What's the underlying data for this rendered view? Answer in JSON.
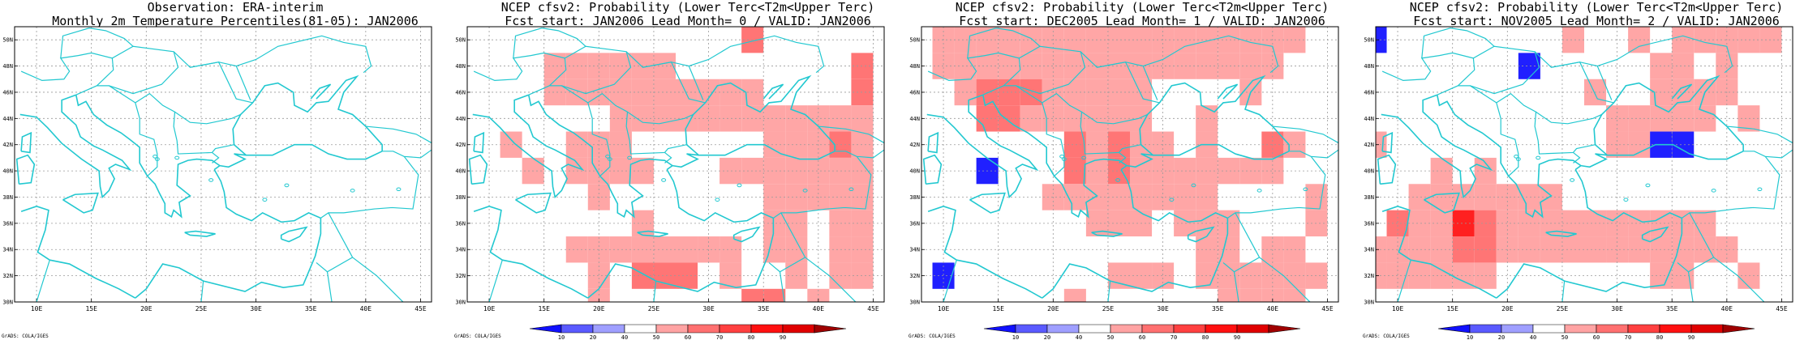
{
  "panels": [
    {
      "title1": "Observation: ERA-interim",
      "title2": "Monthly 2m Temperature Percentiles(81-05): JAN2006",
      "credit": "GrADS: COLA/IGES",
      "has_colorbar": false,
      "cells": []
    },
    {
      "title1": "NCEP cfsv2: Probability (Lower Terc<T2m<Upper Terc)",
      "title2": "Fcst start: JAN2006   Lead Month= 0 / VALID: JAN2006",
      "credit": "GrADS: COLA/IGES",
      "has_colorbar": true,
      "cells": [
        [
          34,
          50,
          50
        ],
        [
          16,
          48,
          40
        ],
        [
          18,
          48,
          40
        ],
        [
          20,
          48,
          40
        ],
        [
          22,
          48,
          40
        ],
        [
          24,
          48,
          40
        ],
        [
          26,
          48,
          40
        ],
        [
          44,
          48,
          50
        ],
        [
          16,
          46,
          40
        ],
        [
          18,
          46,
          40
        ],
        [
          20,
          46,
          40
        ],
        [
          22,
          46,
          40
        ],
        [
          24,
          46,
          40
        ],
        [
          26,
          46,
          40
        ],
        [
          28,
          46,
          40
        ],
        [
          30,
          46,
          40
        ],
        [
          32,
          46,
          40
        ],
        [
          34,
          46,
          40
        ],
        [
          44,
          46,
          50
        ],
        [
          22,
          44,
          40
        ],
        [
          24,
          44,
          40
        ],
        [
          26,
          44,
          40
        ],
        [
          28,
          44,
          40
        ],
        [
          30,
          44,
          40
        ],
        [
          32,
          44,
          40
        ],
        [
          34,
          44,
          40
        ],
        [
          36,
          44,
          40
        ],
        [
          38,
          44,
          40
        ],
        [
          40,
          44,
          40
        ],
        [
          42,
          44,
          40
        ],
        [
          44,
          44,
          40
        ],
        [
          12,
          42,
          40
        ],
        [
          18,
          42,
          40
        ],
        [
          20,
          42,
          40
        ],
        [
          22,
          42,
          40
        ],
        [
          36,
          42,
          40
        ],
        [
          38,
          42,
          40
        ],
        [
          40,
          42,
          40
        ],
        [
          42,
          42,
          50
        ],
        [
          44,
          42,
          40
        ],
        [
          14,
          40,
          40
        ],
        [
          18,
          40,
          40
        ],
        [
          20,
          40,
          40
        ],
        [
          22,
          40,
          40
        ],
        [
          24,
          40,
          40
        ],
        [
          32,
          40,
          40
        ],
        [
          34,
          40,
          40
        ],
        [
          36,
          40,
          40
        ],
        [
          38,
          40,
          40
        ],
        [
          40,
          40,
          40
        ],
        [
          42,
          40,
          40
        ],
        [
          44,
          40,
          40
        ],
        [
          20,
          38,
          40
        ],
        [
          36,
          38,
          40
        ],
        [
          38,
          38,
          40
        ],
        [
          40,
          38,
          40
        ],
        [
          42,
          38,
          40
        ],
        [
          44,
          38,
          40
        ],
        [
          24,
          36,
          40
        ],
        [
          36,
          36,
          40
        ],
        [
          38,
          36,
          40
        ],
        [
          42,
          36,
          40
        ],
        [
          44,
          36,
          40
        ],
        [
          18,
          34,
          40
        ],
        [
          20,
          34,
          40
        ],
        [
          22,
          34,
          40
        ],
        [
          24,
          34,
          40
        ],
        [
          26,
          34,
          40
        ],
        [
          28,
          34,
          40
        ],
        [
          30,
          34,
          40
        ],
        [
          32,
          34,
          40
        ],
        [
          36,
          34,
          40
        ],
        [
          38,
          34,
          40
        ],
        [
          42,
          34,
          40
        ],
        [
          44,
          34,
          40
        ],
        [
          20,
          32,
          40
        ],
        [
          24,
          32,
          50
        ],
        [
          26,
          32,
          50
        ],
        [
          28,
          32,
          50
        ],
        [
          32,
          32,
          40
        ],
        [
          38,
          32,
          40
        ],
        [
          42,
          32,
          40
        ],
        [
          44,
          32,
          40
        ],
        [
          20,
          30,
          40
        ],
        [
          34,
          30,
          50
        ],
        [
          36,
          30,
          50
        ],
        [
          40,
          30,
          40
        ]
      ]
    },
    {
      "title1": "NCEP cfsv2: Probability (Lower Terc<T2m<Upper Terc)",
      "title2": "Fcst start: DEC2005   Lead Month= 1 / VALID: JAN2006",
      "credit": "GrADS: COLA/IGES",
      "has_colorbar": true,
      "cells": [
        [
          10,
          50,
          40
        ],
        [
          12,
          50,
          40
        ],
        [
          14,
          50,
          40
        ],
        [
          16,
          50,
          40
        ],
        [
          18,
          50,
          40
        ],
        [
          20,
          50,
          40
        ],
        [
          22,
          50,
          40
        ],
        [
          24,
          50,
          40
        ],
        [
          26,
          50,
          40
        ],
        [
          28,
          50,
          40
        ],
        [
          30,
          50,
          40
        ],
        [
          32,
          50,
          40
        ],
        [
          34,
          50,
          40
        ],
        [
          36,
          50,
          40
        ],
        [
          38,
          50,
          40
        ],
        [
          40,
          50,
          40
        ],
        [
          42,
          50,
          40
        ],
        [
          10,
          48,
          40
        ],
        [
          12,
          48,
          40
        ],
        [
          14,
          48,
          40
        ],
        [
          16,
          48,
          40
        ],
        [
          18,
          48,
          40
        ],
        [
          20,
          48,
          40
        ],
        [
          22,
          48,
          40
        ],
        [
          24,
          48,
          40
        ],
        [
          26,
          48,
          40
        ],
        [
          28,
          48,
          40
        ],
        [
          30,
          48,
          40
        ],
        [
          32,
          48,
          40
        ],
        [
          34,
          48,
          40
        ],
        [
          36,
          48,
          40
        ],
        [
          38,
          48,
          40
        ],
        [
          40,
          48,
          40
        ],
        [
          12,
          46,
          40
        ],
        [
          14,
          46,
          50
        ],
        [
          16,
          46,
          50
        ],
        [
          18,
          46,
          50
        ],
        [
          20,
          46,
          40
        ],
        [
          22,
          46,
          40
        ],
        [
          24,
          46,
          40
        ],
        [
          26,
          46,
          40
        ],
        [
          28,
          46,
          40
        ],
        [
          38,
          46,
          40
        ],
        [
          14,
          44,
          50
        ],
        [
          16,
          44,
          50
        ],
        [
          18,
          44,
          40
        ],
        [
          20,
          44,
          40
        ],
        [
          22,
          44,
          40
        ],
        [
          24,
          44,
          40
        ],
        [
          26,
          44,
          40
        ],
        [
          28,
          44,
          40
        ],
        [
          34,
          44,
          40
        ],
        [
          22,
          42,
          50
        ],
        [
          24,
          42,
          40
        ],
        [
          26,
          42,
          50
        ],
        [
          28,
          42,
          40
        ],
        [
          30,
          42,
          40
        ],
        [
          34,
          42,
          40
        ],
        [
          40,
          42,
          50
        ],
        [
          42,
          42,
          40
        ],
        [
          14,
          40,
          10
        ],
        [
          22,
          40,
          50
        ],
        [
          24,
          40,
          40
        ],
        [
          26,
          40,
          50
        ],
        [
          28,
          40,
          40
        ],
        [
          30,
          40,
          40
        ],
        [
          32,
          40,
          40
        ],
        [
          34,
          40,
          40
        ],
        [
          36,
          40,
          40
        ],
        [
          38,
          40,
          40
        ],
        [
          40,
          40,
          40
        ],
        [
          20,
          38,
          40
        ],
        [
          22,
          38,
          40
        ],
        [
          24,
          38,
          40
        ],
        [
          26,
          38,
          40
        ],
        [
          28,
          38,
          40
        ],
        [
          30,
          38,
          40
        ],
        [
          32,
          38,
          40
        ],
        [
          34,
          38,
          40
        ],
        [
          44,
          38,
          40
        ],
        [
          24,
          36,
          40
        ],
        [
          26,
          36,
          40
        ],
        [
          28,
          36,
          40
        ],
        [
          32,
          36,
          40
        ],
        [
          34,
          36,
          40
        ],
        [
          36,
          36,
          40
        ],
        [
          44,
          36,
          40
        ],
        [
          34,
          34,
          40
        ],
        [
          36,
          34,
          40
        ],
        [
          40,
          34,
          40
        ],
        [
          42,
          34,
          40
        ],
        [
          10,
          32,
          10
        ],
        [
          26,
          32,
          40
        ],
        [
          28,
          32,
          40
        ],
        [
          30,
          32,
          40
        ],
        [
          34,
          32,
          40
        ],
        [
          36,
          32,
          40
        ],
        [
          38,
          32,
          40
        ],
        [
          40,
          32,
          40
        ],
        [
          42,
          32,
          40
        ],
        [
          44,
          32,
          40
        ],
        [
          22,
          30,
          40
        ],
        [
          36,
          30,
          40
        ],
        [
          38,
          30,
          40
        ],
        [
          40,
          30,
          40
        ],
        [
          42,
          30,
          40
        ]
      ]
    },
    {
      "title1": "NCEP cfsv2: Probability (Lower Terc<T2m<Upper Terc)",
      "title2": "Fcst start: NOV2005   Lead Month= 2 / VALID: JAN2006",
      "credit": "GrADS: COLA/IGES",
      "has_colorbar": true,
      "cells": [
        [
          8,
          50,
          10
        ],
        [
          26,
          50,
          40
        ],
        [
          32,
          50,
          40
        ],
        [
          36,
          50,
          40
        ],
        [
          38,
          50,
          40
        ],
        [
          40,
          50,
          40
        ],
        [
          42,
          50,
          40
        ],
        [
          44,
          50,
          40
        ],
        [
          22,
          48,
          10
        ],
        [
          34,
          48,
          40
        ],
        [
          36,
          48,
          40
        ],
        [
          40,
          48,
          40
        ],
        [
          28,
          46,
          40
        ],
        [
          34,
          46,
          40
        ],
        [
          36,
          46,
          40
        ],
        [
          38,
          46,
          40
        ],
        [
          40,
          46,
          40
        ],
        [
          30,
          44,
          40
        ],
        [
          32,
          44,
          40
        ],
        [
          34,
          44,
          40
        ],
        [
          36,
          44,
          40
        ],
        [
          38,
          44,
          40
        ],
        [
          42,
          44,
          40
        ],
        [
          8,
          42,
          40
        ],
        [
          30,
          42,
          40
        ],
        [
          32,
          42,
          40
        ],
        [
          34,
          42,
          10
        ],
        [
          36,
          42,
          10
        ],
        [
          14,
          40,
          40
        ],
        [
          18,
          40,
          40
        ],
        [
          12,
          38,
          40
        ],
        [
          14,
          38,
          40
        ],
        [
          16,
          38,
          40
        ],
        [
          18,
          38,
          40
        ],
        [
          20,
          38,
          40
        ],
        [
          22,
          38,
          40
        ],
        [
          24,
          38,
          40
        ],
        [
          10,
          36,
          50
        ],
        [
          12,
          36,
          40
        ],
        [
          14,
          36,
          40
        ],
        [
          16,
          36,
          60
        ],
        [
          18,
          36,
          50
        ],
        [
          20,
          36,
          40
        ],
        [
          22,
          36,
          40
        ],
        [
          24,
          36,
          40
        ],
        [
          26,
          36,
          40
        ],
        [
          28,
          36,
          40
        ],
        [
          30,
          36,
          40
        ],
        [
          32,
          36,
          40
        ],
        [
          34,
          36,
          40
        ],
        [
          36,
          36,
          40
        ],
        [
          38,
          36,
          40
        ],
        [
          8,
          34,
          40
        ],
        [
          10,
          34,
          40
        ],
        [
          12,
          34,
          40
        ],
        [
          14,
          34,
          40
        ],
        [
          16,
          34,
          50
        ],
        [
          18,
          34,
          50
        ],
        [
          20,
          34,
          40
        ],
        [
          22,
          34,
          40
        ],
        [
          24,
          34,
          40
        ],
        [
          26,
          34,
          40
        ],
        [
          28,
          34,
          40
        ],
        [
          30,
          34,
          40
        ],
        [
          32,
          34,
          40
        ],
        [
          34,
          34,
          40
        ],
        [
          36,
          34,
          40
        ],
        [
          38,
          34,
          40
        ],
        [
          40,
          34,
          40
        ],
        [
          8,
          32,
          40
        ],
        [
          10,
          32,
          40
        ],
        [
          12,
          32,
          40
        ],
        [
          14,
          32,
          40
        ],
        [
          16,
          32,
          40
        ],
        [
          18,
          32,
          40
        ],
        [
          34,
          32,
          40
        ],
        [
          36,
          32,
          40
        ],
        [
          42,
          32,
          40
        ]
      ]
    }
  ],
  "map": {
    "lon_range": [
      8,
      46
    ],
    "lat_range": [
      30,
      51
    ],
    "lon_ticks": [
      "10E",
      "15E",
      "20E",
      "25E",
      "30E",
      "35E",
      "40E",
      "45E"
    ],
    "lat_ticks": [
      "30N",
      "32N",
      "34N",
      "36N",
      "38N",
      "40N",
      "42N",
      "44N",
      "46N",
      "48N",
      "50N"
    ]
  },
  "colorbar": {
    "labels": [
      "10",
      "20",
      "40",
      "50",
      "60",
      "70",
      "80",
      "90"
    ],
    "colors": [
      "#1010ff",
      "#5a5aff",
      "#9f9fff",
      "#ffffff",
      "#ffa3a3",
      "#ff7070",
      "#ff4040",
      "#ff1010",
      "#e00000",
      "#a00000"
    ]
  },
  "category_colors": {
    "10": "#2020ff",
    "40": "#ffa6a6",
    "50": "#ff7575",
    "60": "#ff2020"
  },
  "coast_color": "#22c8d0"
}
